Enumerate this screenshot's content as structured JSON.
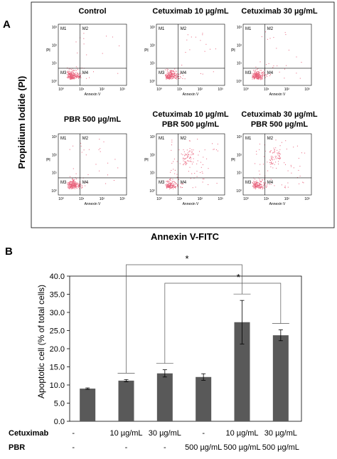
{
  "panel_a": {
    "label": "A",
    "y_axis_title": "Propidium Iodide (PI)",
    "x_axis_title": "Annexin V-FITC",
    "plots": [
      {
        "title_lines": [
          "Control"
        ],
        "dense_fraction": 0.95
      },
      {
        "title_lines": [
          "Cetuximab 10 µg/mL"
        ],
        "dense_fraction": 0.93
      },
      {
        "title_lines": [
          "Cetuximab 30 µg/mL"
        ],
        "dense_fraction": 0.9
      },
      {
        "title_lines": [
          "PBR 500 µg/mL"
        ],
        "dense_fraction": 0.9
      },
      {
        "title_lines": [
          "Cetuximab 10 µg/mL",
          "PBR 500 µg/mL"
        ],
        "dense_fraction": 0.75
      },
      {
        "title_lines": [
          "Cetuximab 30 µg/mL",
          "PBR 500 µg/mL"
        ],
        "dense_fraction": 0.78
      }
    ],
    "quadrant_labels": [
      "M1",
      "M2",
      "M3",
      "M4"
    ],
    "plot_ylabel": "PI",
    "plot_xlabel": "Annexin V",
    "y_ticks": [
      "10³",
      "10²",
      "10¹",
      "10⁰"
    ],
    "x_ticks": [
      "10⁰",
      "10¹",
      "10²",
      "10³"
    ],
    "dot_color": "#e8607a"
  },
  "chart_data": {
    "type": "bar",
    "label": "B",
    "ylabel": "Apoptotic cell (% of total cells)",
    "ylim": [
      0,
      40
    ],
    "y_ticks": [
      "0.0",
      "5.0",
      "10.0",
      "15.0",
      "20.0",
      "25.0",
      "30.0",
      "35.0",
      "40.0"
    ],
    "y_tick_values": [
      0,
      5,
      10,
      15,
      20,
      25,
      30,
      35,
      40
    ],
    "values": [
      9.0,
      11.2,
      13.2,
      12.2,
      27.3,
      23.7
    ],
    "errors": [
      0.2,
      0.3,
      1.0,
      0.9,
      6.0,
      1.5
    ],
    "bar_color": "#595959",
    "rows": [
      {
        "label": "Cetuximab",
        "cells": [
          "-",
          "10 µg/mL",
          "30 µg/mL",
          "-",
          "10 µg/mL",
          "30 µg/mL"
        ]
      },
      {
        "label": "PBR",
        "cells": [
          "-",
          "-",
          "-",
          "500 µg/mL",
          "500 µg/mL",
          "500 µg/mL"
        ]
      }
    ],
    "significance": [
      "*",
      "*"
    ],
    "grid": false
  }
}
